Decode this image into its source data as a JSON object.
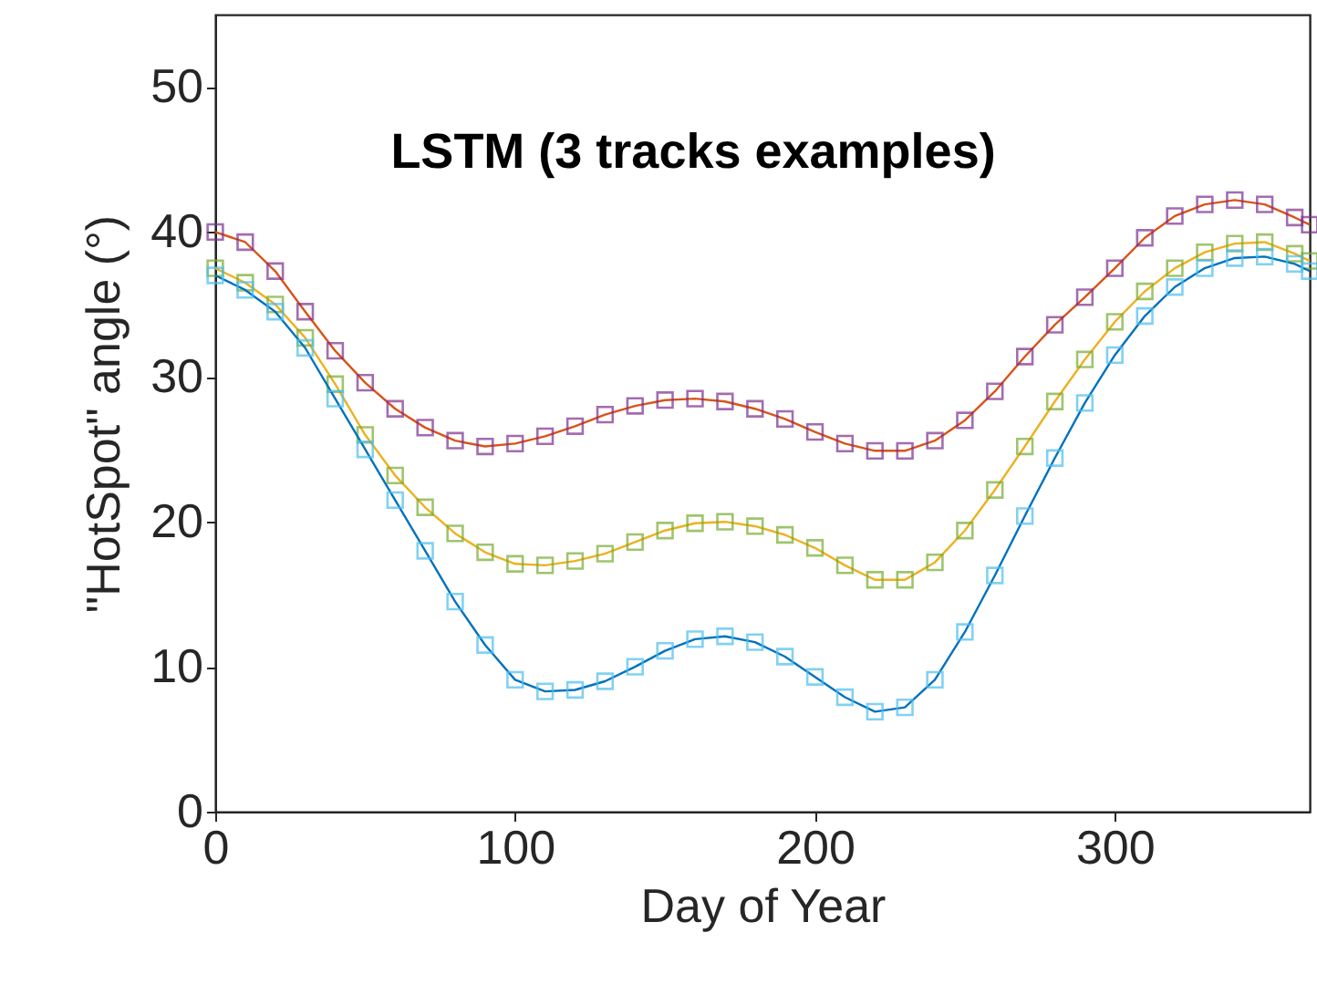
{
  "chart_data": {
    "type": "line",
    "title": "LSTM (3 tracks examples)",
    "xlabel": "Day of Year",
    "ylabel": "\"HotSpot\" angle (°)",
    "xlim": [
      0,
      365
    ],
    "ylim": [
      0,
      55
    ],
    "xticks": [
      0,
      100,
      200,
      300
    ],
    "yticks": [
      0,
      10,
      20,
      30,
      40,
      50
    ],
    "x": [
      0,
      10,
      20,
      30,
      40,
      50,
      60,
      70,
      80,
      90,
      100,
      110,
      120,
      130,
      140,
      150,
      160,
      170,
      180,
      190,
      200,
      210,
      220,
      230,
      240,
      250,
      260,
      270,
      280,
      290,
      300,
      310,
      320,
      330,
      340,
      350,
      360,
      365
    ],
    "series": [
      {
        "marker": "none",
        "color": "#d95319",
        "values": [
          40,
          39.3,
          37.3,
          34.5,
          31.8,
          29.6,
          27.8,
          26.5,
          25.6,
          25.2,
          25.4,
          25.9,
          26.6,
          27.4,
          28,
          28.4,
          28.5,
          28.3,
          27.8,
          27.1,
          26.2,
          25.4,
          24.9,
          24.9,
          25.6,
          27,
          29,
          31.4,
          33.6,
          35.5,
          37.5,
          39.6,
          41.1,
          41.9,
          42.2,
          41.9,
          41,
          40.5
        ]
      },
      {
        "type": "scatter",
        "marker": "square",
        "color": "#7e2f8e",
        "values": [
          40,
          39.3,
          37.3,
          34.5,
          31.8,
          29.6,
          27.8,
          26.5,
          25.6,
          25.2,
          25.4,
          25.9,
          26.6,
          27.4,
          28,
          28.4,
          28.5,
          28.3,
          27.8,
          27.1,
          26.2,
          25.4,
          24.9,
          24.9,
          25.6,
          27,
          29,
          31.4,
          33.6,
          35.5,
          37.5,
          39.6,
          41.1,
          41.9,
          42.2,
          41.9,
          41,
          40.5
        ]
      },
      {
        "marker": "none",
        "color": "#edb120",
        "values": [
          37.5,
          36.5,
          35,
          32.7,
          29.5,
          26,
          23.2,
          21,
          19.2,
          17.9,
          17.1,
          17,
          17.3,
          17.8,
          18.6,
          19.4,
          19.9,
          20,
          19.7,
          19.1,
          18.2,
          17,
          16,
          16,
          17.2,
          19.4,
          22.2,
          25.2,
          28.3,
          31.2,
          33.8,
          35.9,
          37.5,
          38.6,
          39.2,
          39.3,
          38.5,
          38
        ]
      },
      {
        "type": "scatter",
        "marker": "square",
        "color": "#77ac30",
        "values": [
          37.5,
          36.5,
          35,
          32.7,
          29.5,
          26,
          23.2,
          21,
          19.2,
          17.9,
          17.1,
          17,
          17.3,
          17.8,
          18.6,
          19.4,
          19.9,
          20,
          19.7,
          19.1,
          18.2,
          17,
          16,
          16,
          17.2,
          19.4,
          22.2,
          25.2,
          28.3,
          31.2,
          33.8,
          35.9,
          37.5,
          38.6,
          39.2,
          39.3,
          38.5,
          38
        ]
      },
      {
        "marker": "none",
        "color": "#0072bd",
        "values": [
          37,
          36,
          34.5,
          32,
          28.5,
          25,
          21.5,
          18,
          14.5,
          11.5,
          9.1,
          8.3,
          8.4,
          9,
          10,
          11.1,
          11.9,
          12.1,
          11.7,
          10.7,
          9.3,
          7.9,
          6.9,
          7.2,
          9.1,
          12.4,
          16.3,
          20.4,
          24.4,
          28.2,
          31.5,
          34.2,
          36.2,
          37.5,
          38.2,
          38.3,
          37.8,
          37.3
        ]
      },
      {
        "type": "scatter",
        "marker": "square",
        "color": "#4dbeee",
        "values": [
          37,
          36,
          34.5,
          32,
          28.5,
          25,
          21.5,
          18,
          14.5,
          11.5,
          9.1,
          8.3,
          8.4,
          9,
          10,
          11.1,
          11.9,
          12.1,
          11.7,
          10.7,
          9.3,
          7.9,
          6.9,
          7.2,
          9.1,
          12.4,
          16.3,
          20.4,
          24.4,
          28.2,
          31.5,
          34.2,
          36.2,
          37.5,
          38.2,
          38.3,
          37.8,
          37.3
        ]
      }
    ]
  }
}
